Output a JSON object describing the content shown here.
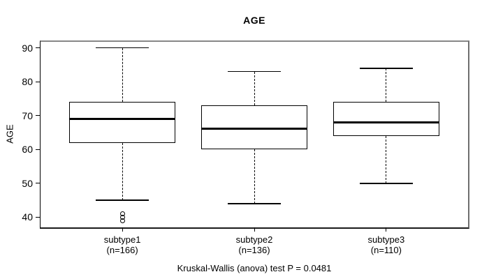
{
  "chart_data": {
    "type": "boxplot",
    "title": "AGE",
    "xlabel": "",
    "ylabel": "AGE",
    "ylim": [
      37,
      92
    ],
    "yticks": [
      40,
      50,
      60,
      70,
      80,
      90
    ],
    "grid": false,
    "legend": false,
    "background": "#ffffff",
    "box_color": "#000000",
    "groups": [
      {
        "label": "subtype1",
        "sublabel": "(n=166)",
        "n": 166,
        "whisker_low": 45,
        "q1": 62,
        "median": 69,
        "q3": 74,
        "whisker_high": 90,
        "outliers": [
          41,
          40,
          39
        ]
      },
      {
        "label": "subtype2",
        "sublabel": "(n=136)",
        "n": 136,
        "whisker_low": 44,
        "q1": 60,
        "median": 66,
        "q3": 73,
        "whisker_high": 83,
        "outliers": []
      },
      {
        "label": "subtype3",
        "sublabel": "(n=110)",
        "n": 110,
        "whisker_low": 50,
        "q1": 64,
        "median": 68,
        "q3": 74,
        "whisker_high": 84,
        "outliers": []
      }
    ],
    "annotation": "Kruskal-Wallis (anova) test P = 0.0481"
  }
}
